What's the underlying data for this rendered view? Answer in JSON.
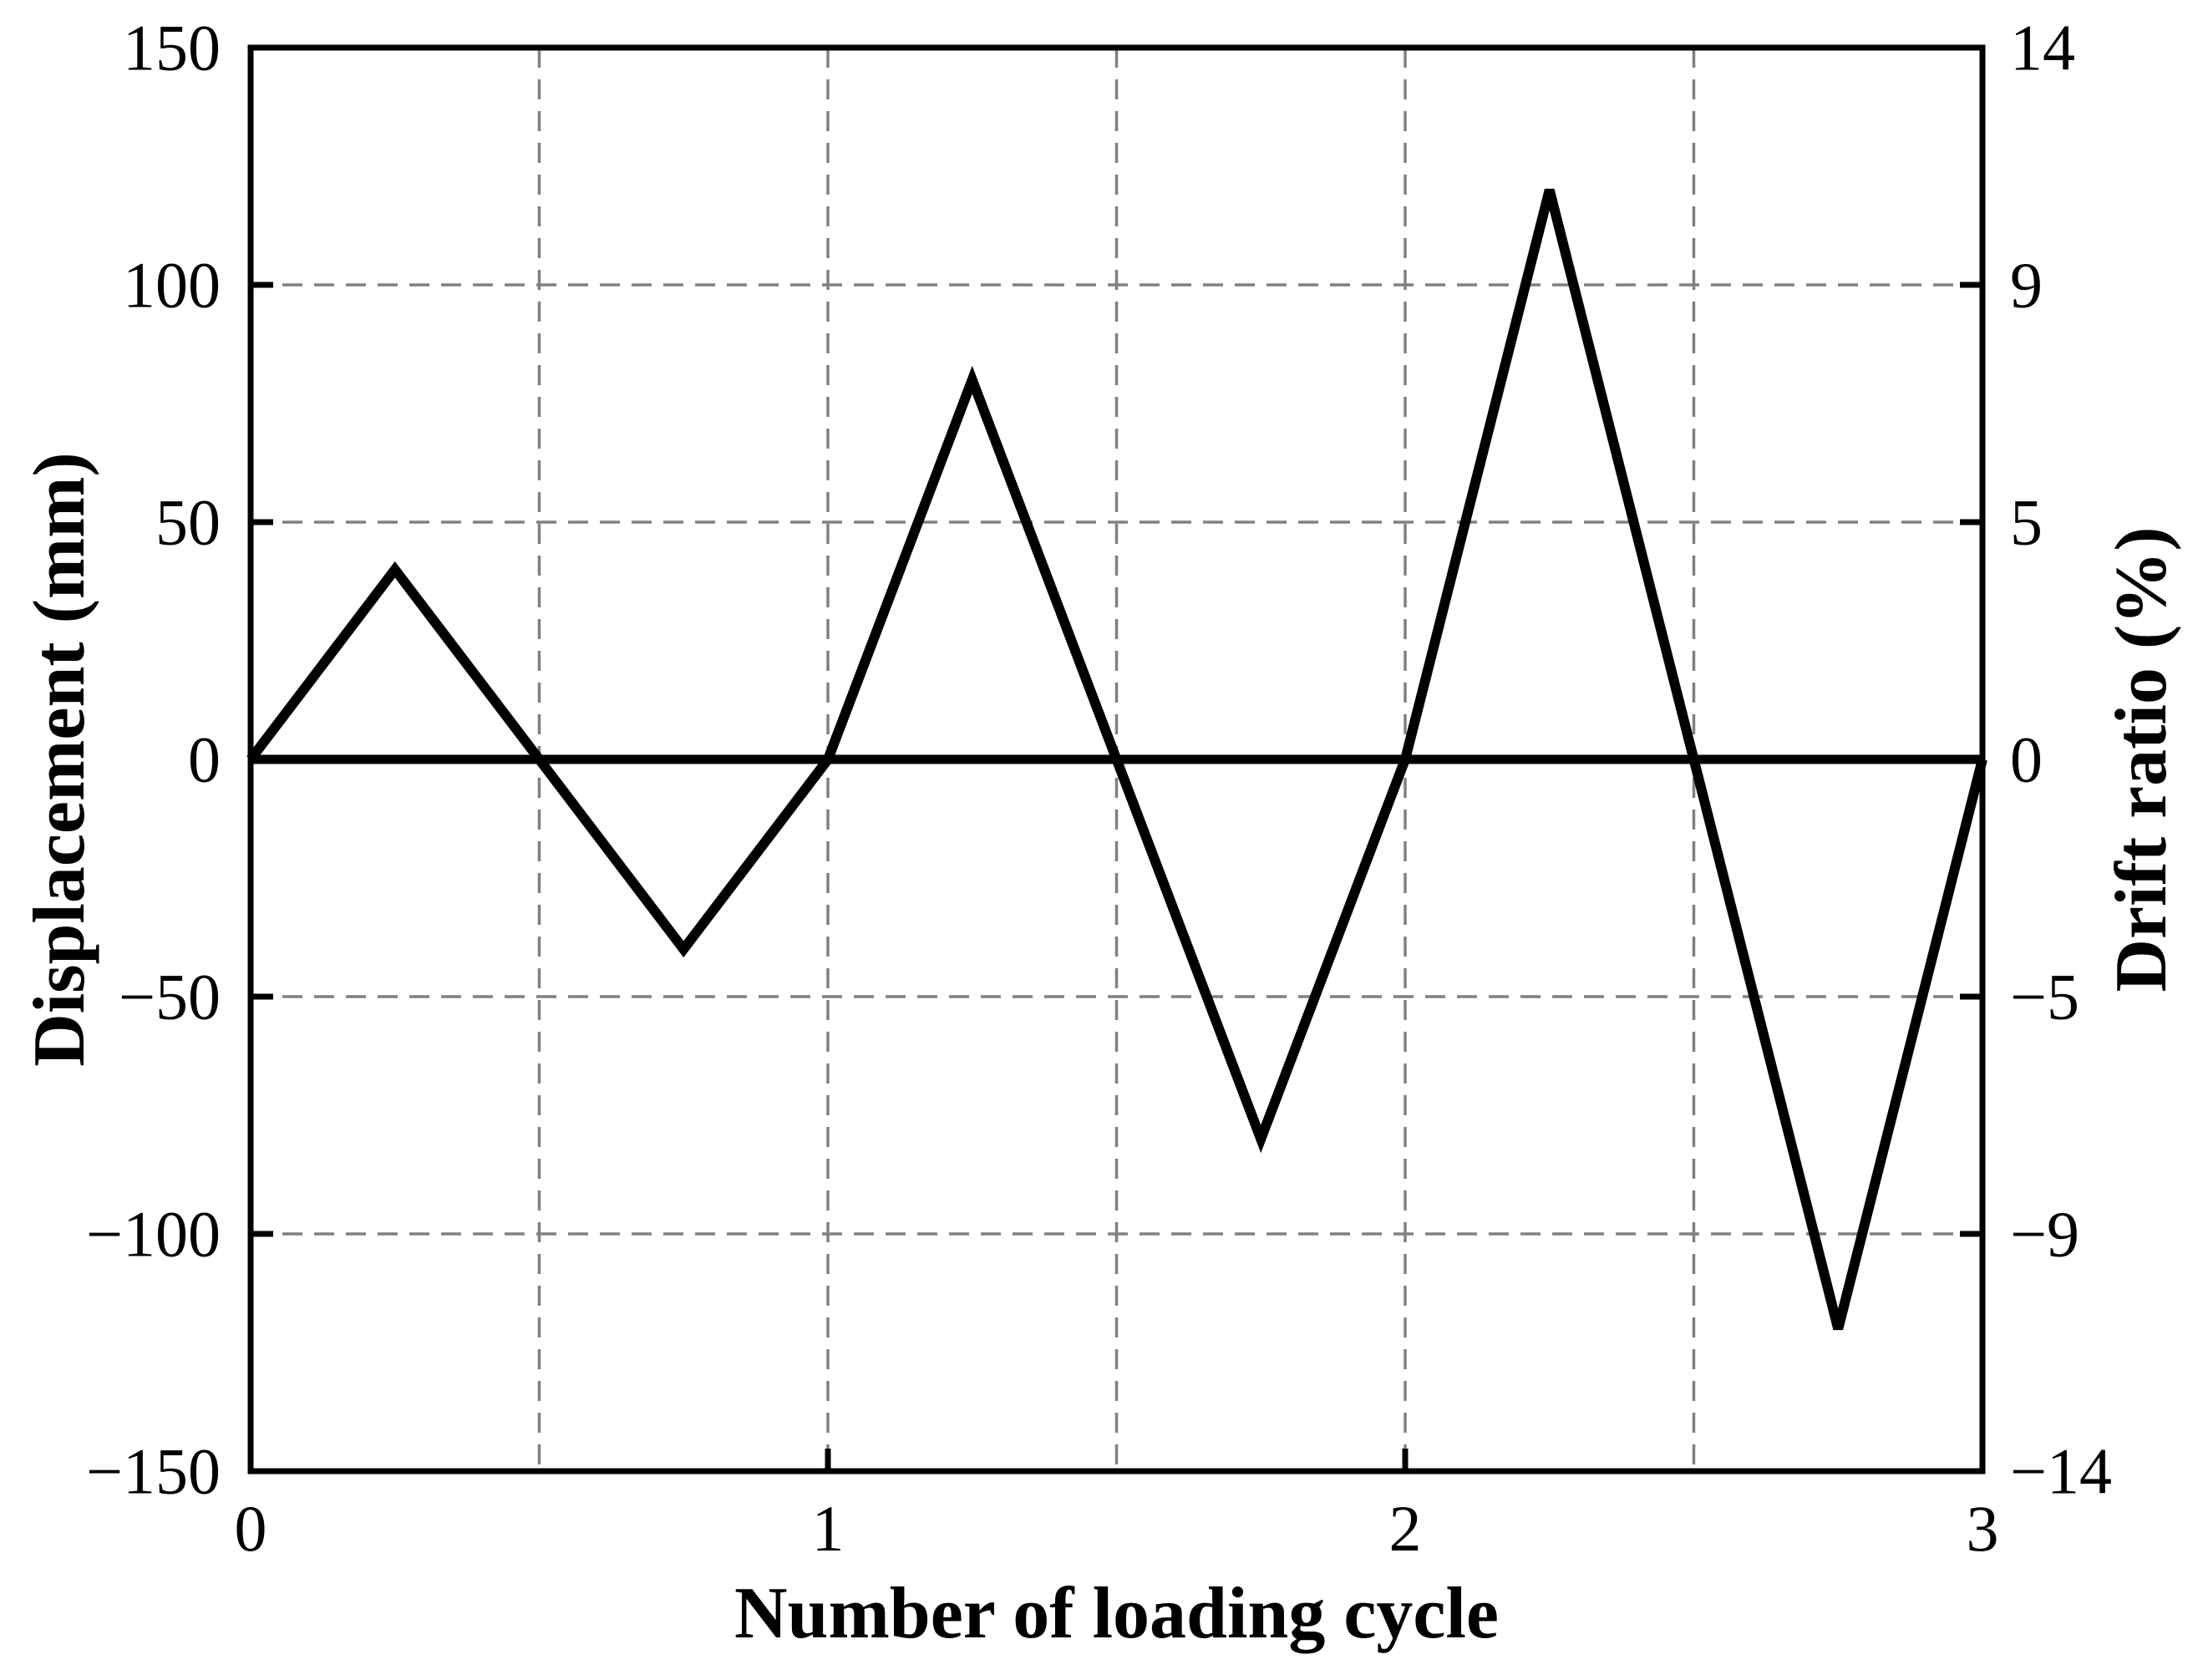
{
  "figure": {
    "background_color": "#ffffff",
    "axis_color": "#000000",
    "text_color": "#000000"
  },
  "chart_data": {
    "type": "line",
    "title": "",
    "xlabel": "Number of loading cycle",
    "ylabel_left": "Displacement (mm)",
    "ylabel_right": "Drift ratio (%)",
    "xlim": [
      0,
      3
    ],
    "ylim_left": [
      -150,
      150
    ],
    "x_ticks": [
      {
        "label": "0",
        "v": 0
      },
      {
        "label": "1",
        "v": 1
      },
      {
        "label": "2",
        "v": 2
      },
      {
        "label": "3",
        "v": 3
      }
    ],
    "y_ticks_left": [
      {
        "label": "150",
        "v": 150
      },
      {
        "label": "100",
        "v": 100
      },
      {
        "label": "50",
        "v": 50
      },
      {
        "label": "0",
        "v": 0
      },
      {
        "label": "−50",
        "v": -50
      },
      {
        "label": "−100",
        "v": -100
      },
      {
        "label": "−150",
        "v": -150
      }
    ],
    "y_ticks_right": [
      {
        "label": "14",
        "v": 150
      },
      {
        "label": "9",
        "v": 100
      },
      {
        "label": "5",
        "v": 50
      },
      {
        "label": "0",
        "v": 0
      },
      {
        "label": "−5",
        "v": -50
      },
      {
        "label": "−9",
        "v": -100
      },
      {
        "label": "−14",
        "v": -150
      }
    ],
    "grid": {
      "style": "dashed",
      "color": "#808080",
      "x_values": [
        0.5,
        1,
        1.5,
        2,
        2.5
      ],
      "y_values": [
        100,
        50,
        -50,
        -100
      ]
    },
    "series": [
      {
        "name": "zero reference line",
        "role": "reference",
        "color": "#000000",
        "x": [
          0,
          3
        ],
        "y": [
          0,
          0
        ]
      },
      {
        "name": "displacement loading protocol",
        "role": "data",
        "color": "#000000",
        "x": [
          0,
          0.25,
          0.5,
          0.75,
          1,
          1.25,
          1.5,
          1.75,
          2,
          2.25,
          2.5,
          2.75,
          3
        ],
        "y": [
          0,
          40,
          0,
          -40,
          0,
          80,
          0,
          -80,
          0,
          120,
          0,
          -120,
          0
        ]
      }
    ]
  }
}
